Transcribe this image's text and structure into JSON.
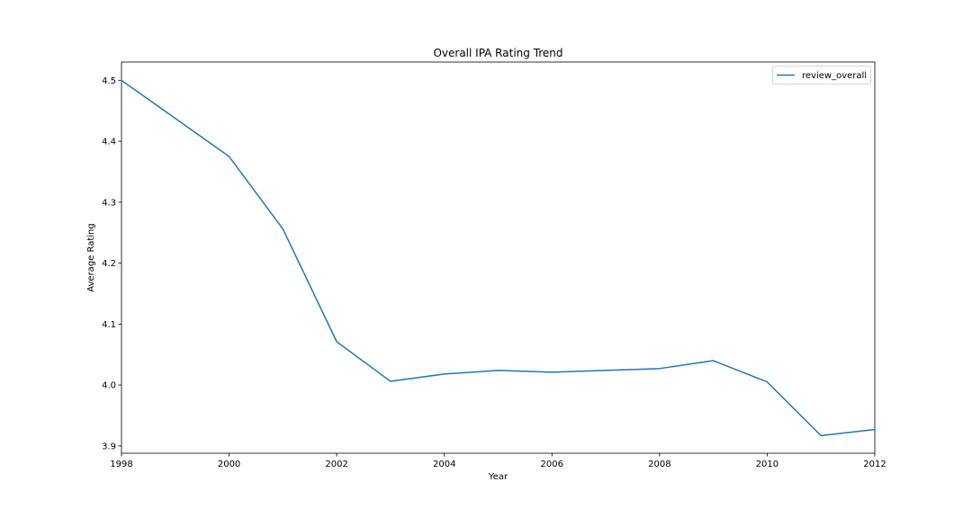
{
  "chart_data": {
    "type": "line",
    "title": "Overall IPA Rating Trend",
    "xlabel": "Year",
    "ylabel": "Average Rating",
    "xlim": [
      1998,
      2012
    ],
    "ylim": [
      3.888,
      4.53
    ],
    "x_ticks": [
      1998,
      2000,
      2002,
      2004,
      2006,
      2008,
      2010,
      2012
    ],
    "y_ticks": [
      3.9,
      4.0,
      4.1,
      4.2,
      4.3,
      4.4,
      4.5
    ],
    "y_tick_labels": [
      "3.9",
      "4.0",
      "4.1",
      "4.2",
      "4.3",
      "4.4",
      "4.5"
    ],
    "grid": false,
    "legend_position": "top-right",
    "series": [
      {
        "name": "review_overall",
        "color": "#1f77b4",
        "x": [
          1998,
          2000,
          2001,
          2002,
          2003,
          2004,
          2005,
          2006,
          2007,
          2008,
          2009,
          2010,
          2011,
          2012
        ],
        "y": [
          4.5,
          4.375,
          4.256,
          4.071,
          4.006,
          4.018,
          4.024,
          4.021,
          4.024,
          4.027,
          4.04,
          4.005,
          3.917,
          3.927
        ]
      }
    ]
  }
}
